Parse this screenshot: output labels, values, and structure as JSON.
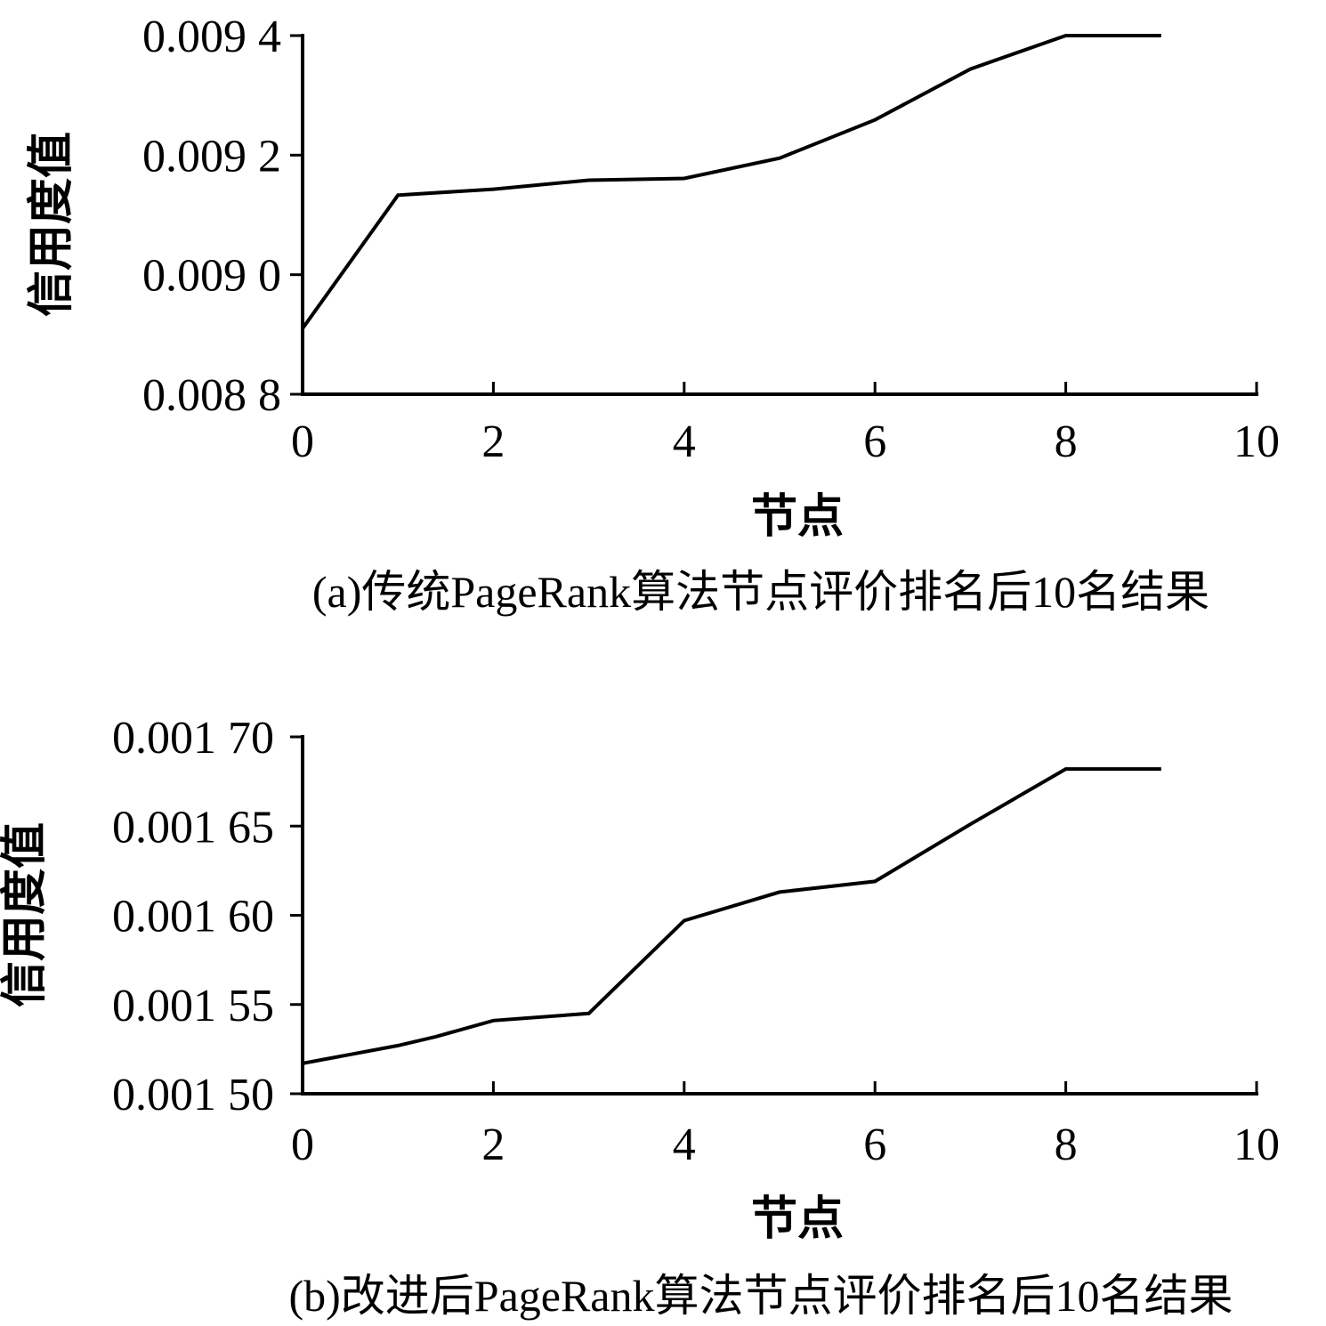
{
  "chart_data": [
    {
      "type": "line",
      "caption": "(a)传统PageRank算法节点评价排名后10名结果",
      "xlabel": "节点",
      "ylabel": "信用度值",
      "xlim": [
        0,
        10
      ],
      "ylim": [
        0.0088,
        0.0094
      ],
      "x_ticks": [
        0,
        2,
        4,
        6,
        8,
        10
      ],
      "x_tick_labels": [
        "0",
        "2",
        "4",
        "6",
        "8",
        "10"
      ],
      "y_ticks": [
        0.0088,
        0.009,
        0.0092,
        0.0094
      ],
      "y_tick_labels": [
        "0.008 8",
        "0.009 0",
        "0.009 2",
        "0.009 4"
      ],
      "grid": false,
      "series": [
        {
          "x": [
            0,
            1,
            2,
            3,
            4,
            5,
            6,
            7,
            8,
            9
          ],
          "values": [
            0.00891,
            0.009133,
            0.009143,
            0.009158,
            0.009161,
            0.009195,
            0.009259,
            0.009344,
            0.0094,
            0.0094
          ]
        }
      ]
    },
    {
      "type": "line",
      "caption": "(b)改进后PageRank算法节点评价排名后10名结果",
      "xlabel": "节点",
      "ylabel": "信用度值",
      "xlim": [
        0,
        10
      ],
      "ylim": [
        0.0015,
        0.0017
      ],
      "x_ticks": [
        0,
        2,
        4,
        6,
        8,
        10
      ],
      "x_tick_labels": [
        "0",
        "2",
        "4",
        "6",
        "8",
        "10"
      ],
      "y_ticks": [
        0.0015,
        0.00155,
        0.0016,
        0.00165,
        0.0017
      ],
      "y_tick_labels": [
        "0.001 50",
        "0.001 55",
        "0.001 60",
        "0.001 65",
        "0.001 70"
      ],
      "grid": false,
      "series": [
        {
          "x": [
            0,
            1,
            1.4,
            2,
            3,
            4,
            5,
            6,
            7,
            8,
            9
          ],
          "values": [
            0.001517,
            0.001527,
            0.001532,
            0.001541,
            0.001545,
            0.001597,
            0.001613,
            0.001619,
            0.001651,
            0.001682,
            0.001682
          ]
        }
      ]
    }
  ]
}
